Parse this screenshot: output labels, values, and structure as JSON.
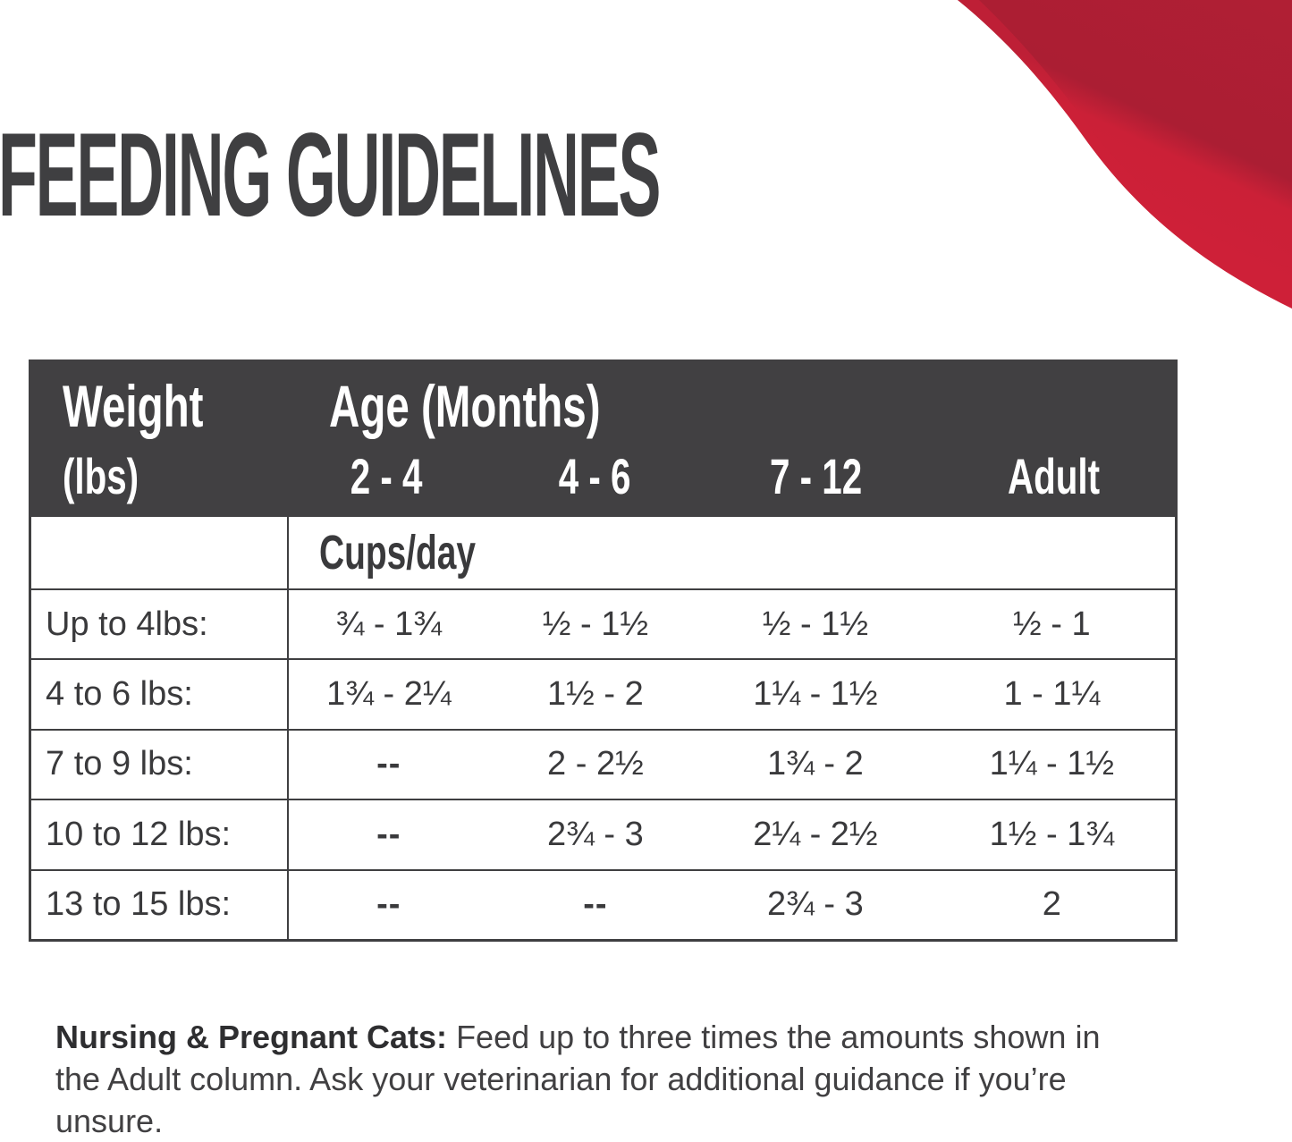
{
  "title": "FEEDING GUIDELINES",
  "table": {
    "weight_header": "Weight",
    "weight_unit": "(lbs)",
    "age_header": "Age (Months)",
    "age_columns": [
      "2 - 4",
      "4 - 6",
      "7 - 12",
      "Adult"
    ],
    "units_label": "Cups/day",
    "rows": [
      {
        "weight": "Up to 4lbs:",
        "values": [
          "¾ - 1¾",
          "½ - 1½",
          "½ - 1½",
          "½ - 1"
        ]
      },
      {
        "weight": "4 to 6 lbs:",
        "values": [
          "1¾ - 2¼",
          "1½ - 2",
          "1¼ - 1½",
          "1 - 1¼"
        ]
      },
      {
        "weight": "7 to 9 lbs:",
        "values": [
          "--",
          "2 - 2½",
          "1¾ - 2",
          "1¼ - 1½"
        ]
      },
      {
        "weight": "10 to 12 lbs:",
        "values": [
          "--",
          "2¾ - 3",
          "2¼ - 2½",
          "1½ - 1¾"
        ]
      },
      {
        "weight": "13 to 15 lbs:",
        "values": [
          "--",
          "--",
          "2¾ - 3",
          "2"
        ]
      }
    ]
  },
  "footnote": {
    "lead": "Nursing & Pregnant Cats:",
    "body": "Feed up to three times the amounts shown in the Adult column. Ask your veterinarian for additional guidance if you’re unsure."
  },
  "colors": {
    "header_bg": "#414042",
    "text_dark": "#3a3a3c",
    "border": "#3f3f41",
    "accent_red_bright": "#d22039",
    "accent_red_dark": "#a81e32"
  }
}
